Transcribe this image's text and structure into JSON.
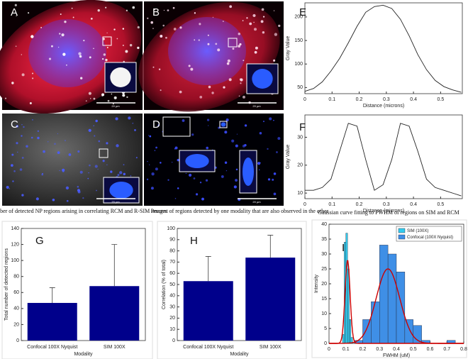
{
  "images": [
    {
      "label": "A",
      "scale": "20 µm"
    },
    {
      "label": "B",
      "scale": "20 µm"
    },
    {
      "label": "C",
      "scale": "20 µm"
    },
    {
      "label": "D",
      "scale": "20 µm"
    }
  ],
  "chart_data": [
    {
      "type": "line",
      "label": "E",
      "xlabel": "Distance (microns)",
      "ylabel": "Gray Value",
      "color": "#222222",
      "x": [
        0,
        0.032,
        0.064,
        0.096,
        0.128,
        0.16,
        0.192,
        0.224,
        0.256,
        0.288,
        0.32,
        0.352,
        0.384,
        0.416,
        0.448,
        0.48,
        0.512,
        0.544,
        0.576
      ],
      "values": [
        42,
        48,
        62,
        85,
        112,
        145,
        180,
        210,
        222,
        225,
        218,
        195,
        160,
        120,
        88,
        65,
        52,
        45,
        40
      ],
      "xlim": [
        0,
        0.58
      ],
      "xticks": [
        0,
        0.1,
        0.2,
        0.3,
        0.4,
        0.5
      ],
      "ylim": [
        37,
        230
      ],
      "yticks": [
        50,
        100,
        150,
        200
      ]
    },
    {
      "type": "line",
      "label": "F",
      "xlabel": "Distance (microns)",
      "ylabel": "Gray Value",
      "color": "#222222",
      "x": [
        0,
        0.032,
        0.064,
        0.096,
        0.128,
        0.16,
        0.192,
        0.224,
        0.256,
        0.288,
        0.32,
        0.352,
        0.384,
        0.416,
        0.448,
        0.48,
        0.512,
        0.544,
        0.576
      ],
      "values": [
        11,
        11,
        12,
        15,
        25,
        35,
        34,
        22,
        11,
        13,
        22,
        35,
        34,
        25,
        15,
        12,
        11,
        10,
        9
      ],
      "xlim": [
        0,
        0.58
      ],
      "xticks": [
        0,
        0.1,
        0.2,
        0.3,
        0.4,
        0.5
      ],
      "ylim": [
        8,
        38
      ],
      "yticks": [
        10,
        20,
        30
      ]
    },
    {
      "type": "bar",
      "label": "G",
      "title": "Number of detected NP regions arising in correlating RCM and R-SIM images",
      "xlabel": "Modality",
      "ylabel": "Total number of detected regions",
      "color": "#00008b",
      "categories": [
        "Confocal 100X Nyquist",
        "SIM 100X"
      ],
      "values": [
        47,
        68
      ],
      "errors": [
        19,
        52
      ],
      "ylim": [
        0,
        140
      ],
      "yticks": [
        0,
        20,
        40,
        60,
        80,
        100,
        120,
        140
      ]
    },
    {
      "type": "bar",
      "label": "H",
      "title": "Percent of regions detected by one modality that are also observed in the other",
      "xlabel": "Modality",
      "ylabel": "Correlation (% of total)",
      "color": "#00008b",
      "categories": [
        "Confocal 100X Nyquist",
        "SIM 100X"
      ],
      "values": [
        53,
        74
      ],
      "errors": [
        22,
        20
      ],
      "ylim": [
        0,
        100
      ],
      "yticks": [
        0,
        10,
        20,
        30,
        40,
        50,
        60,
        70,
        80,
        90,
        100
      ]
    },
    {
      "type": "histogram",
      "label": "I",
      "title": "Gaussian curve fitting to FWHM of regions on SIM and RCM",
      "xlabel": "FWHM (uM)",
      "ylabel": "Intensity",
      "legend": "upper right",
      "series": [
        {
          "name": "SIM (100X)",
          "color": "#33ccee",
          "bins": [
            0.08,
            0.09,
            0.1,
            0.11,
            0.12,
            0.13,
            0.14
          ],
          "values": [
            3,
            34,
            37,
            25,
            8,
            2
          ]
        },
        {
          "name": "Confocal (100X Nyquist)",
          "color": "#3f8fe6",
          "bins": [
            0.15,
            0.2,
            0.25,
            0.3,
            0.35,
            0.4,
            0.45,
            0.5,
            0.55,
            0.6,
            0.65,
            0.7,
            0.75
          ],
          "values": [
            1,
            8,
            14,
            33,
            30,
            24,
            8,
            6,
            1,
            0,
            0,
            1
          ]
        }
      ],
      "fits": [
        {
          "color": "#cc0000",
          "peak": 28,
          "mu": 0.11,
          "sigma": 0.015
        },
        {
          "color": "#cc0000",
          "peak": 25,
          "mu": 0.35,
          "sigma": 0.07
        }
      ],
      "xlim": [
        0,
        0.8
      ],
      "xticks": [
        0,
        0.1,
        0.2,
        0.3,
        0.4,
        0.5,
        0.6,
        0.7,
        0.8
      ],
      "ylim": [
        0,
        40
      ],
      "yticks": [
        0,
        5,
        10,
        15,
        20,
        25,
        30,
        35,
        40
      ]
    }
  ]
}
